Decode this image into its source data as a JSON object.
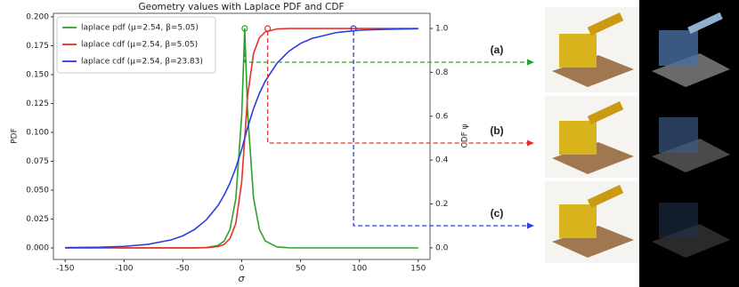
{
  "chart_data": {
    "type": "line",
    "title": "Geometry values with Laplace PDF and CDF",
    "xlabel": "σ",
    "ylabel": "PDF",
    "y2label": "CDF ψ",
    "x": [
      -150,
      -120,
      -100,
      -80,
      -60,
      -50,
      -40,
      -30,
      -20,
      -15,
      -10,
      -5,
      0,
      2.54,
      5,
      10,
      15,
      20,
      30,
      40,
      50,
      60,
      80,
      100,
      120,
      150
    ],
    "series": [
      {
        "name": "laplace pdf (μ=2.54, β=5.05)",
        "color": "#2ca02c",
        "axis": "y",
        "values": [
          0,
          0,
          0,
          0,
          0,
          0,
          0,
          0.0003,
          0.0022,
          0.0059,
          0.0159,
          0.0427,
          0.115,
          0.19,
          0.117,
          0.0434,
          0.0161,
          0.006,
          0.0008,
          0.0001,
          0,
          0,
          0,
          0,
          0,
          0
        ]
      },
      {
        "name": "laplace cdf (μ=2.54, β=5.05)",
        "color": "#e8302a",
        "axis": "y2",
        "values": [
          0,
          0,
          0,
          0,
          0,
          0,
          0.0001,
          0.0008,
          0.0058,
          0.0155,
          0.042,
          0.112,
          0.302,
          0.5,
          0.693,
          0.886,
          0.958,
          0.984,
          0.998,
          0.9997,
          1,
          1,
          1,
          1,
          1,
          1
        ]
      },
      {
        "name": "laplace cdf (μ=2.54, β=23.83)",
        "color": "#2a3ee0",
        "axis": "y2",
        "values": [
          0.0008,
          0.0029,
          0.0068,
          0.0157,
          0.036,
          0.055,
          0.084,
          0.128,
          0.194,
          0.24,
          0.295,
          0.365,
          0.449,
          0.5,
          0.549,
          0.634,
          0.704,
          0.76,
          0.842,
          0.896,
          0.932,
          0.955,
          0.981,
          0.992,
          0.996,
          0.999
        ]
      }
    ],
    "xlim": [
      -160,
      160
    ],
    "xticks": [
      -150,
      -100,
      -50,
      0,
      50,
      100,
      150
    ],
    "ylim": [
      -0.01,
      0.203
    ],
    "yticks": [
      {
        "value": 0,
        "label": "0.000"
      },
      {
        "value": 0.025,
        "label": "0.025"
      },
      {
        "value": 0.05,
        "label": "0.050"
      },
      {
        "value": 0.075,
        "label": "0.075"
      },
      {
        "value": 0.1,
        "label": "0.100"
      },
      {
        "value": 0.125,
        "label": "0.125"
      },
      {
        "value": 0.15,
        "label": "0.150"
      },
      {
        "value": 0.175,
        "label": "0.175"
      },
      {
        "value": 0.2,
        "label": "0.200"
      }
    ],
    "y2lim": [
      -0.053,
      1.069
    ],
    "y2ticks": [
      {
        "value": 0,
        "label": "0.0"
      },
      {
        "value": 0.2,
        "label": "0.2"
      },
      {
        "value": 0.4,
        "label": "0.4"
      },
      {
        "value": 0.6,
        "label": "0.6"
      },
      {
        "value": 0.8,
        "label": "0.8"
      },
      {
        "value": 1,
        "label": "1.0"
      }
    ],
    "legend": "upper left",
    "markers": [
      {
        "label": "(a)",
        "x": 2.54,
        "y": 1.0,
        "color": "#2ca02c"
      },
      {
        "label": "(b)",
        "x": 22,
        "y": 1.0,
        "color": "#e8302a"
      },
      {
        "label": "(c)",
        "x": 95,
        "y": 1.0,
        "color": "#2a3ee0"
      }
    ]
  }
}
